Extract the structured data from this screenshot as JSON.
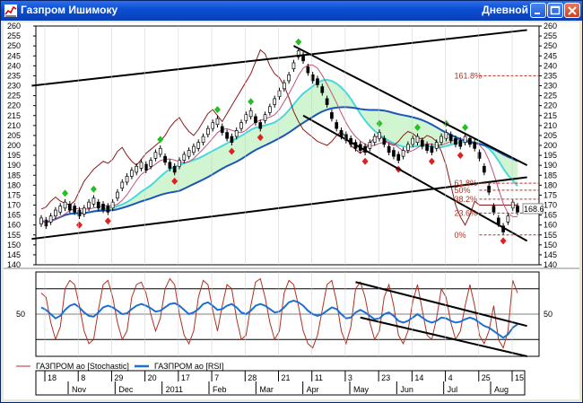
{
  "window": {
    "title": "Газпром Ишимоку",
    "timeframe": "Дневной"
  },
  "colors": {
    "titlebar": "#0b4fd6",
    "price_line": "#000000",
    "tenkan": "#8b1a1a",
    "kijun": "#c0507a",
    "cloud_a": "#49d8e0",
    "cloud_b": "#1a56b8",
    "cloud_fill": "#7be07b",
    "up_fractal": "#22c022",
    "down_fractal": "#e02020",
    "stochastic": "#b03020",
    "rsi": "#1c6fd0",
    "fib": "#b03020"
  },
  "chart_data": [
    {
      "type": "line",
      "title": "",
      "ylim": [
        140,
        260
      ],
      "y_ticks": [
        "260",
        "255",
        "250",
        "245",
        "240",
        "235",
        "230",
        "225",
        "220",
        "215",
        "210",
        "205",
        "200",
        "195",
        "190",
        "185",
        "180",
        "175",
        "170",
        "165",
        "160",
        "155",
        "150",
        "145",
        "140"
      ],
      "right_y_ticks": [
        "260",
        "255",
        "250",
        "245",
        "240",
        "235",
        "230",
        "225",
        "220",
        "215",
        "210",
        "205",
        "200",
        "195",
        "190",
        "185",
        "180",
        "175",
        "170",
        "165",
        "160",
        "155",
        "150",
        "145",
        "140"
      ],
      "current_price_label": "168.6",
      "fib_levels": [
        {
          "label": "161.8%",
          "value": 235
        },
        {
          "label": "61.8%",
          "value": 181
        },
        {
          "label": "50%",
          "value": 177.5
        },
        {
          "label": "38.2%",
          "value": 173
        },
        {
          "label": "23.6%",
          "value": 166
        },
        {
          "label": "0%",
          "value": 155
        }
      ],
      "price": [
        162,
        161,
        163,
        166,
        168,
        170,
        169,
        168,
        166,
        167,
        170,
        172,
        170,
        169,
        168,
        170,
        175,
        180,
        183,
        186,
        188,
        190,
        189,
        191,
        195,
        197,
        193,
        190,
        188,
        191,
        194,
        196,
        198,
        200,
        203,
        207,
        210,
        212,
        208,
        205,
        203,
        206,
        210,
        214,
        216,
        213,
        210,
        214,
        218,
        222,
        226,
        230,
        234,
        240,
        246,
        244,
        238,
        234,
        232,
        228,
        222,
        215,
        210,
        206,
        204,
        202,
        200,
        199,
        198,
        200,
        203,
        205,
        202,
        198,
        196,
        194,
        196,
        199,
        202,
        203,
        201,
        199,
        198,
        200,
        203,
        205,
        204,
        202,
        201,
        203,
        202,
        200,
        195,
        188,
        178,
        168,
        162,
        158,
        163,
        170,
        168
      ],
      "series": [
        {
          "name": "ГАЗПРОМ ао [Stochastic]",
          "color": "#b03020"
        },
        {
          "name": "ГАЗПРОМ ао [RSI]",
          "color": "#1c6fd0"
        }
      ]
    },
    {
      "type": "line",
      "ylim": [
        0,
        100
      ],
      "y_ticks": [
        "50"
      ],
      "right_y_ticks": [
        "50"
      ],
      "levels": [
        20,
        80
      ],
      "stochastic": [
        75,
        70,
        40,
        20,
        35,
        80,
        90,
        85,
        60,
        30,
        15,
        20,
        55,
        85,
        90,
        70,
        40,
        20,
        30,
        70,
        85,
        88,
        75,
        50,
        30,
        45,
        80,
        92,
        85,
        50,
        25,
        15,
        30,
        70,
        90,
        85,
        55,
        30,
        60,
        85,
        80,
        45,
        20,
        25,
        60,
        88,
        92,
        70,
        40,
        20,
        30,
        75,
        90,
        85,
        60,
        30,
        15,
        10,
        25,
        55,
        85,
        90,
        65,
        30,
        15,
        35,
        80,
        88,
        70,
        40,
        20,
        30,
        70,
        85,
        60,
        25,
        15,
        30,
        65,
        85,
        55,
        25,
        20,
        45,
        80,
        70,
        40,
        20,
        30,
        60,
        85,
        60,
        25,
        15,
        30,
        60,
        20,
        10,
        30,
        90,
        75
      ],
      "rsi": [
        58,
        55,
        50,
        45,
        48,
        55,
        60,
        62,
        58,
        52,
        48,
        47,
        52,
        58,
        60,
        58,
        54,
        50,
        51,
        56,
        60,
        62,
        60,
        57,
        53,
        54,
        58,
        62,
        63,
        60,
        55,
        50,
        52,
        56,
        62,
        64,
        60,
        55,
        56,
        60,
        62,
        58,
        52,
        50,
        54,
        60,
        62,
        60,
        56,
        52,
        53,
        58,
        64,
        66,
        64,
        60,
        54,
        50,
        48,
        50,
        54,
        58,
        56,
        50,
        45,
        46,
        52,
        55,
        52,
        48,
        44,
        45,
        50,
        52,
        48,
        42,
        40,
        42,
        46,
        50,
        46,
        42,
        40,
        42,
        46,
        45,
        42,
        40,
        41,
        44,
        46,
        44,
        40,
        36,
        34,
        30,
        26,
        22,
        26,
        34,
        38
      ]
    }
  ],
  "x_axis": {
    "day_labels": [
      "18",
      "8",
      "29",
      "20",
      "17",
      "7",
      "28",
      "21",
      "11",
      "3",
      "23",
      "14",
      "4",
      "25",
      "15"
    ],
    "month_labels": [
      "Nov",
      "Dec",
      "2011",
      "Feb",
      "Mar",
      "Apr",
      "May",
      "Jun",
      "Jul",
      "Aug"
    ]
  }
}
